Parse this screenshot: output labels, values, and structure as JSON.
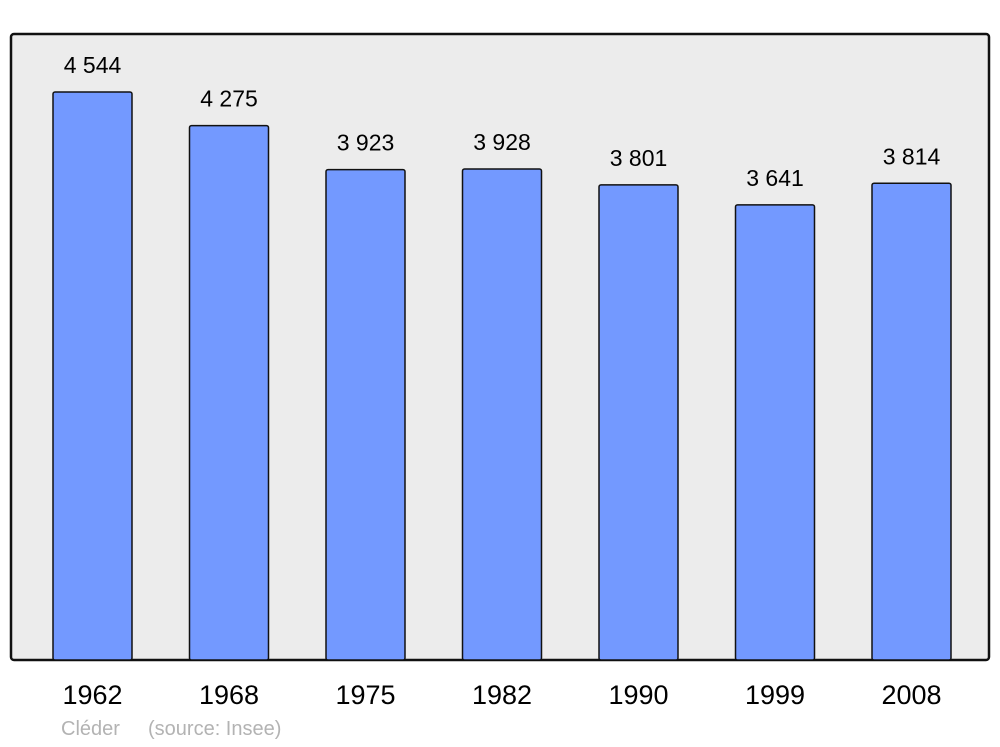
{
  "chart_data": {
    "type": "bar",
    "categories": [
      "1962",
      "1968",
      "1975",
      "1982",
      "1990",
      "1999",
      "2008"
    ],
    "values": [
      4544,
      4275,
      3923,
      3928,
      3801,
      3641,
      3814
    ],
    "data_labels": [
      "4 544",
      "4 275",
      "3 923",
      "3 928",
      "3 801",
      "3 641",
      "3 814"
    ],
    "title": "",
    "xlabel": "",
    "ylabel": "",
    "ylim": [
      0,
      5000
    ],
    "grid": false,
    "bar_color": "#7399ff",
    "background_color": "#ececec"
  },
  "footer": {
    "place": "Cléder",
    "source": "(source: Insee)"
  }
}
